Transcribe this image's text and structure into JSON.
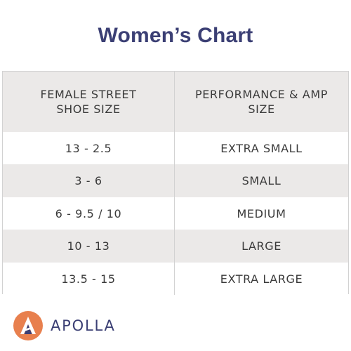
{
  "title": "Women’s Chart",
  "table": {
    "headers": [
      "FEMALE STREET\nSHOE SIZE",
      "PERFORMANCE & AMP\nSIZE"
    ],
    "rows": [
      [
        "13 - 2.5",
        "EXTRA SMALL"
      ],
      [
        "3 - 6",
        "SMALL"
      ],
      [
        "6 - 9.5 /  10",
        "MEDIUM"
      ],
      [
        "10 - 13",
        "LARGE"
      ],
      [
        "13.5 - 15",
        "EXTRA LARGE"
      ]
    ]
  },
  "brand": {
    "name": "APOLLA",
    "logo_icon": "apolla-logo-icon",
    "logo_color": "#e8804e",
    "text_color": "#3b3f74"
  },
  "colors": {
    "title": "#3b3f74",
    "header_bg": "#ebe9e8",
    "stripe_bg": "#ebe9e8",
    "text": "#3a3a3a"
  }
}
